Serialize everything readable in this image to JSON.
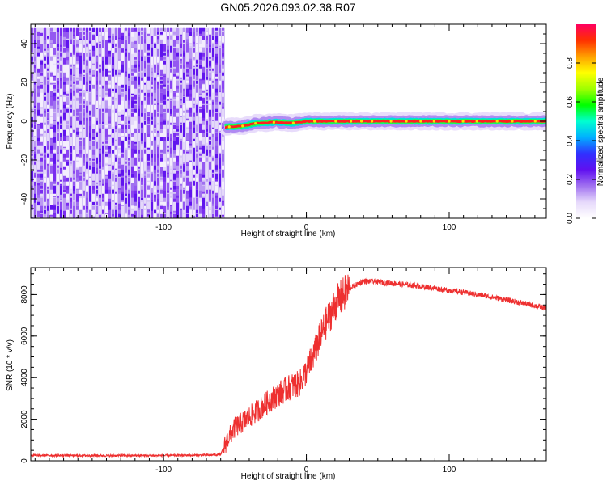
{
  "title": "GN05.2026.093.02.38.R07",
  "chart_data": [
    {
      "type": "heatmap",
      "name": "spectrogram",
      "xlabel": "Height of straight line (km)",
      "ylabel": "Frequency (Hz)",
      "xlim": [
        -193,
        168
      ],
      "ylim": [
        -50,
        50
      ],
      "xticks": [
        -100,
        0,
        100
      ],
      "yticks": [
        -40,
        -20,
        0,
        20,
        40
      ],
      "noise_region": {
        "x_start": -193,
        "x_end": -57,
        "y_range": [
          -50,
          48
        ]
      },
      "carrier_line": {
        "x_start": -57,
        "x_end": 168,
        "freq_points": [
          [
            -57,
            -3
          ],
          [
            -45,
            -2.5
          ],
          [
            -35,
            -1
          ],
          [
            -20,
            -0.5
          ],
          [
            -10,
            -1
          ],
          [
            0,
            0
          ],
          [
            20,
            0
          ],
          [
            60,
            0
          ],
          [
            100,
            0
          ],
          [
            168,
            0
          ]
        ],
        "halo_hz": 3.5
      },
      "colorbar": {
        "label": "Normalized spectral amplitude",
        "range": [
          0.0,
          1.0
        ],
        "ticks": [
          "0.0",
          "0.2",
          "0.4",
          "0.6",
          "0.8"
        ],
        "ramp": [
          "#ffffff",
          "#e6d9fb",
          "#a070f0",
          "#6010f0",
          "#3030ff",
          "#00b0ff",
          "#00ffd0",
          "#00ff00",
          "#a0ff00",
          "#ffff00",
          "#ffa000",
          "#ff3000",
          "#ff0060"
        ]
      }
    },
    {
      "type": "line",
      "name": "snr",
      "xlabel": "Height of straight line (km)",
      "ylabel": "SNR (10 * v/v)",
      "xlim": [
        -193,
        168
      ],
      "ylim": [
        0,
        9300
      ],
      "xticks": [
        -100,
        0,
        100
      ],
      "yticks": [
        0,
        2000,
        4000,
        6000,
        8000
      ],
      "series": [
        {
          "name": "SNR",
          "color": "#ee3030",
          "envelope": [
            [
              -193,
              260
            ],
            [
              -150,
              250
            ],
            [
              -100,
              250
            ],
            [
              -70,
              270
            ],
            [
              -60,
              300
            ],
            [
              -55,
              1050
            ],
            [
              -50,
              1600
            ],
            [
              -40,
              2100
            ],
            [
              -30,
              2650
            ],
            [
              -20,
              3200
            ],
            [
              -10,
              3600
            ],
            [
              -5,
              3700
            ],
            [
              0,
              4300
            ],
            [
              5,
              5100
            ],
            [
              10,
              6000
            ],
            [
              15,
              6800
            ],
            [
              20,
              7500
            ],
            [
              30,
              8300
            ],
            [
              40,
              8650
            ],
            [
              50,
              8600
            ],
            [
              60,
              8550
            ],
            [
              80,
              8400
            ],
            [
              100,
              8200
            ],
            [
              120,
              8000
            ],
            [
              140,
              7750
            ],
            [
              168,
              7350
            ]
          ]
        }
      ]
    }
  ]
}
